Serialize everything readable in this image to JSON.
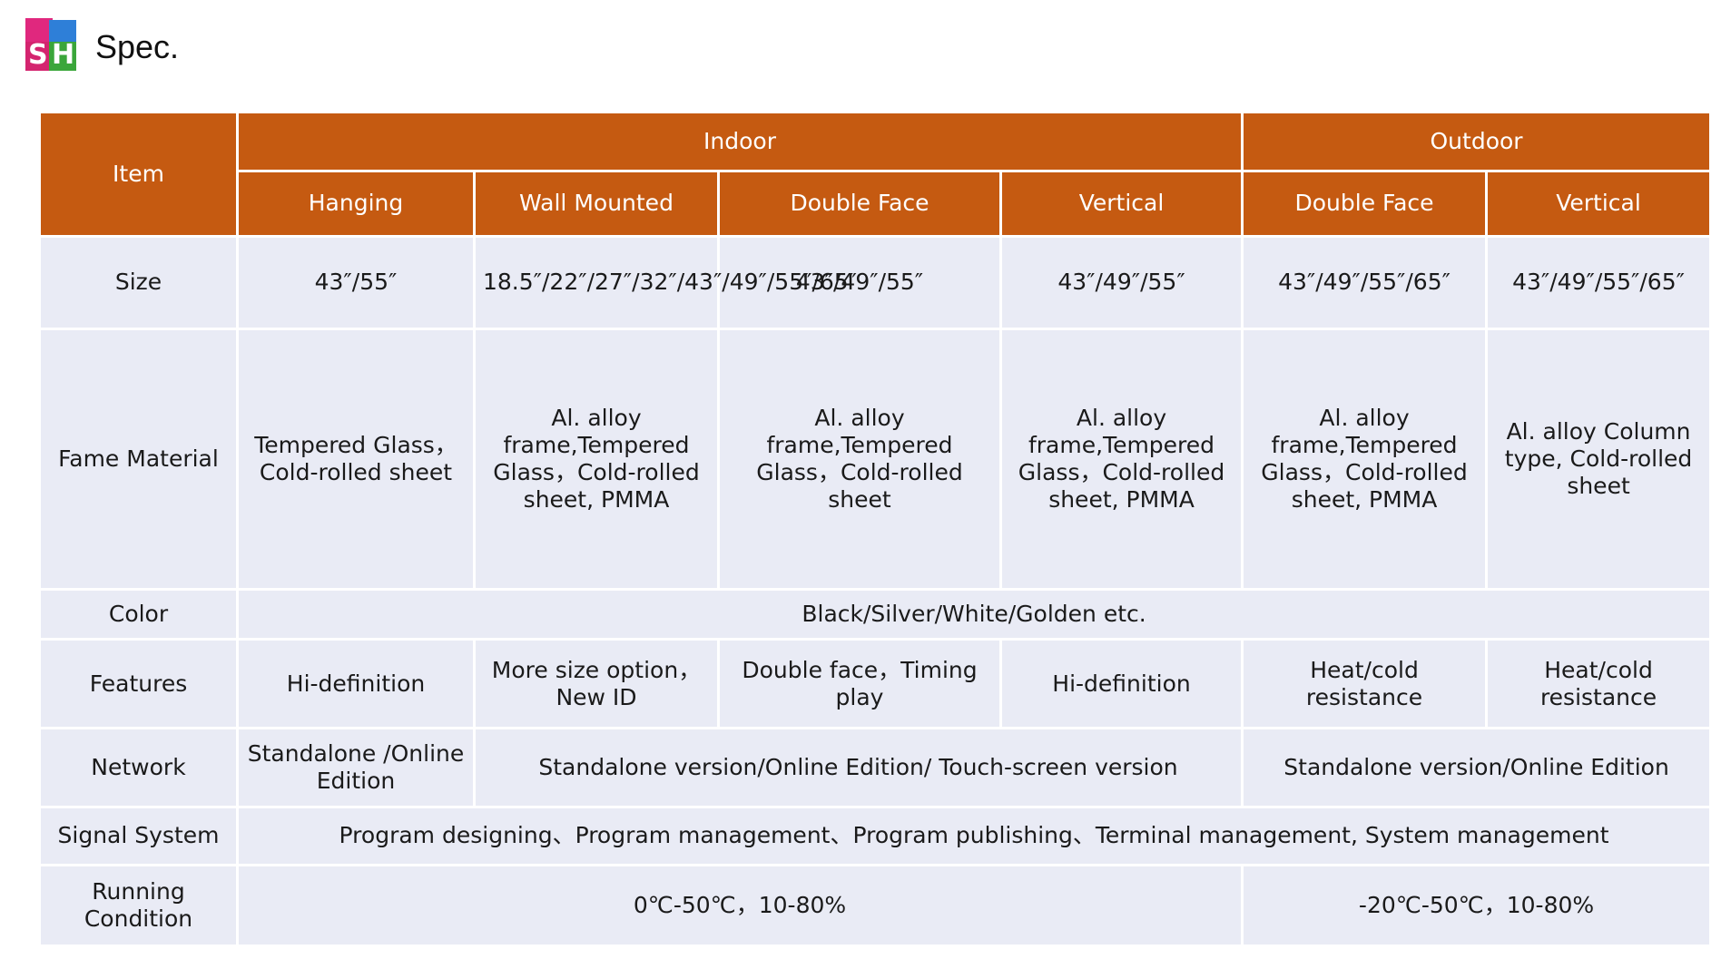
{
  "header": {
    "title": "Spec.",
    "logo_letters": [
      "S",
      "H"
    ]
  },
  "colors": {
    "header_bg": "#c55a11",
    "header_text": "#ffffff",
    "cell_bg": "#e9ebf5"
  },
  "table": {
    "item_label": "Item",
    "groups": [
      "Indoor",
      "Outdoor"
    ],
    "columns": [
      "Hanging",
      "Wall Mounted",
      "Double Face",
      "Vertical",
      "Double Face",
      "Vertical"
    ],
    "rows": {
      "size": {
        "label": "Size",
        "values": [
          "43″/55″",
          "18.5″/22″/27″/32″/43″/49″/55″/65″",
          "43″/49″/55″",
          "43″/49″/55″",
          "43″/49″/55″/65″",
          "43″/49″/55″/65″"
        ]
      },
      "material": {
        "label": "Fame Material",
        "values": [
          "Tempered Glass，Cold-rolled sheet",
          "Al. alloy frame,Tempered Glass，Cold-rolled sheet, PMMA",
          "Al. alloy frame,Tempered Glass，Cold-rolled sheet",
          "Al. alloy frame,Tempered Glass，Cold-rolled sheet, PMMA",
          "Al. alloy frame,Tempered Glass，Cold-rolled sheet, PMMA",
          "Al. alloy Column type, Cold-rolled sheet"
        ]
      },
      "color": {
        "label": "Color",
        "value": "Black/Silver/White/Golden etc."
      },
      "features": {
        "label": "Features",
        "values": [
          "Hi-definition",
          "More size option，New ID",
          "Double face，Timing play",
          "Hi-definition",
          "Heat/cold resistance",
          "Heat/cold resistance"
        ]
      },
      "network": {
        "label": "Network",
        "hanging": "Standalone /Online Edition",
        "indoor_rest": "Standalone version/Online Edition/ Touch-screen version",
        "outdoor": "Standalone version/Online Edition"
      },
      "signal": {
        "label": "Signal System",
        "value": "Program designing、Program management、Program publishing、Terminal management, System management"
      },
      "running": {
        "label": "Running Condition",
        "indoor": "0℃-50℃，10-80%",
        "outdoor": "-20℃-50℃，10-80%"
      }
    }
  }
}
